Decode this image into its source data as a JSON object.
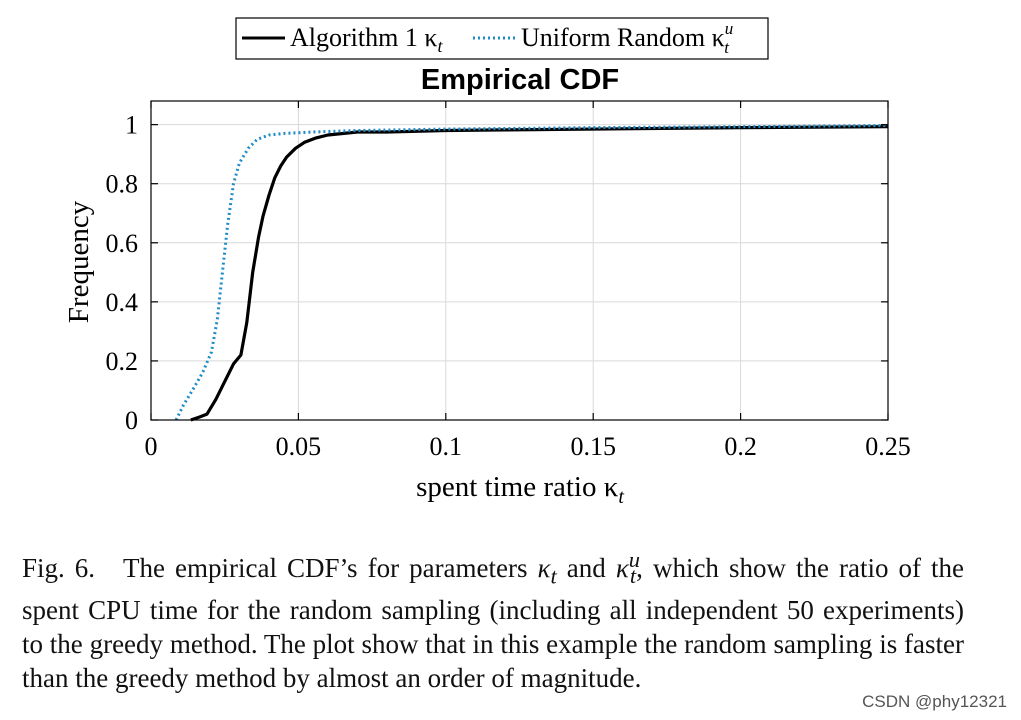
{
  "chart_data": {
    "type": "line",
    "title": "Empirical CDF",
    "xlabel": "spent time ratio κ",
    "xlabel_sub": "t",
    "ylabel": "Frequency",
    "xlim": [
      0,
      0.25
    ],
    "ylim": [
      0,
      1.08
    ],
    "xticks": [
      0,
      0.05,
      0.1,
      0.15,
      0.2,
      0.25
    ],
    "xtick_labels": [
      "0",
      "0.05",
      "0.1",
      "0.15",
      "0.2",
      "0.25"
    ],
    "yticks": [
      0,
      0.2,
      0.4,
      0.6,
      0.8,
      1
    ],
    "ytick_labels": [
      "0",
      "0.2",
      "0.4",
      "0.6",
      "0.8",
      "1"
    ],
    "grid": true,
    "legend_position": "top-center",
    "series": [
      {
        "name": "Algorithm 1 κ",
        "name_sub": "t",
        "name_sup": "",
        "color": "#000000",
        "style": "solid",
        "x": [
          0.0135,
          0.0165,
          0.019,
          0.022,
          0.025,
          0.028,
          0.0305,
          0.0325,
          0.0345,
          0.0365,
          0.038,
          0.04,
          0.042,
          0.044,
          0.046,
          0.049,
          0.052,
          0.056,
          0.06,
          0.065,
          0.07,
          0.08,
          0.1,
          0.12,
          0.16,
          0.2,
          0.25
        ],
        "y": [
          0,
          0.01,
          0.02,
          0.07,
          0.13,
          0.19,
          0.22,
          0.33,
          0.5,
          0.62,
          0.69,
          0.76,
          0.82,
          0.86,
          0.89,
          0.92,
          0.94,
          0.955,
          0.965,
          0.97,
          0.975,
          0.975,
          0.98,
          0.982,
          0.986,
          0.99,
          0.993
        ]
      },
      {
        "name": "Uniform Random κ",
        "name_sub": "t",
        "name_sup": "u",
        "color": "#1f8bc7",
        "style": "dotted",
        "x": [
          0.0085,
          0.011,
          0.014,
          0.0175,
          0.0205,
          0.0225,
          0.024,
          0.026,
          0.028,
          0.03,
          0.033,
          0.036,
          0.04,
          0.045,
          0.055,
          0.07,
          0.1,
          0.15,
          0.2,
          0.25
        ],
        "y": [
          0,
          0.05,
          0.1,
          0.16,
          0.23,
          0.34,
          0.48,
          0.66,
          0.8,
          0.87,
          0.92,
          0.95,
          0.965,
          0.97,
          0.975,
          0.98,
          0.985,
          0.99,
          0.993,
          0.997
        ]
      }
    ]
  },
  "caption": {
    "label": "Fig. 6.",
    "line1_a": "The empirical CDF’s for parameters ",
    "k1": "κ",
    "k1_sub": "t",
    "mid": " and ",
    "k2": "κ",
    "k2_sub": "t",
    "k2_sup": "u",
    "rest": ", which show the ratio of the spent CPU time for the random sampling (including all independent 50 experiments) to the greedy method. The plot show that in this example the random sampling is faster than the greedy method by almost an order of magnitude."
  },
  "watermark": "CSDN @phy12321"
}
